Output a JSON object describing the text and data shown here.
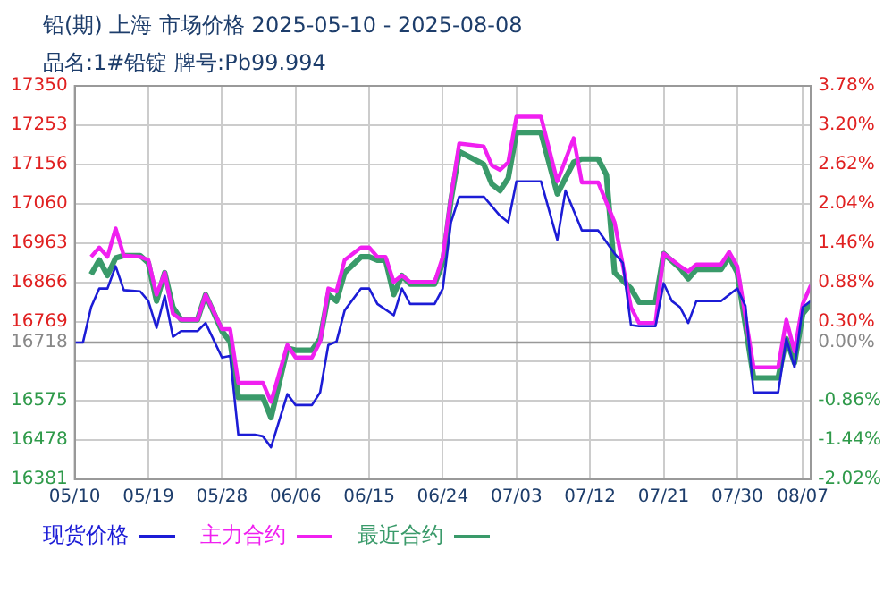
{
  "chart_data": {
    "type": "line",
    "title": "铅(期) 上海 市场价格 2025-05-10 - 2025-08-08",
    "subtitle": "品名:1#铅锭 牌号:Pb99.994",
    "xlim": [
      "2025-05-10",
      "2025-08-08"
    ],
    "xticks": [
      {
        "value": "2025-05-10",
        "label": "05/10"
      },
      {
        "value": "2025-05-19",
        "label": "05/19"
      },
      {
        "value": "2025-05-28",
        "label": "05/28"
      },
      {
        "value": "2025-06-06",
        "label": "06/06"
      },
      {
        "value": "2025-06-15",
        "label": "06/15"
      },
      {
        "value": "2025-06-24",
        "label": "06/24"
      },
      {
        "value": "2025-07-03",
        "label": "07/03"
      },
      {
        "value": "2025-07-12",
        "label": "07/12"
      },
      {
        "value": "2025-07-21",
        "label": "07/21"
      },
      {
        "value": "2025-07-30",
        "label": "07/30"
      },
      {
        "value": "2025-08-07",
        "label": "08/07"
      }
    ],
    "ylim": [
      16381,
      17350
    ],
    "yticks": [
      17350,
      17253,
      17156,
      17060,
      16963,
      16866,
      16769,
      16718,
      {
        "value": 16672,
        "label": null
      },
      16575,
      16478,
      16381
    ],
    "y2lim": [
      -2.02,
      3.78
    ],
    "y2ticks": [
      {
        "value": 3.78,
        "label": "3.78%"
      },
      {
        "value": 3.2,
        "label": "3.20%"
      },
      {
        "value": 2.62,
        "label": "2.62%"
      },
      {
        "value": 2.04,
        "label": "2.04%"
      },
      {
        "value": 1.46,
        "label": "1.46%"
      },
      {
        "value": 0.88,
        "label": "0.88%"
      },
      {
        "value": 0.3,
        "label": "0.30%"
      },
      {
        "value": 0,
        "label": "0.00%"
      },
      {
        "value": -0.86,
        "label": "-0.86%"
      },
      {
        "value": -1.44,
        "label": "-1.44%"
      },
      {
        "value": -2.02,
        "label": "-2.02%"
      }
    ],
    "ref_lines": [
      {
        "axis": "y",
        "value": 16718,
        "color": "#999999"
      }
    ],
    "grid": true,
    "legend": "bottom",
    "marker": "none",
    "line_style": "solid",
    "series": [
      {
        "name": "现货价格",
        "color": "#1c1cd6",
        "x": [
          "2025-05-10",
          "2025-05-11",
          "2025-05-12",
          "2025-05-13",
          "2025-05-14",
          "2025-05-15",
          "2025-05-16",
          "2025-05-18",
          "2025-05-19",
          "2025-05-20",
          "2025-05-21",
          "2025-05-22",
          "2025-05-23",
          "2025-05-25",
          "2025-05-26",
          "2025-05-28",
          "2025-05-29",
          "2025-05-30",
          "2025-06-01",
          "2025-06-02",
          "2025-06-03",
          "2025-06-05",
          "2025-06-06",
          "2025-06-08",
          "2025-06-09",
          "2025-06-10",
          "2025-06-11",
          "2025-06-12",
          "2025-06-14",
          "2025-06-15",
          "2025-06-16",
          "2025-06-18",
          "2025-06-19",
          "2025-06-20",
          "2025-06-23",
          "2025-06-24",
          "2025-06-25",
          "2025-06-26",
          "2025-06-29",
          "2025-07-01",
          "2025-07-02",
          "2025-07-03",
          "2025-07-06",
          "2025-07-08",
          "2025-07-09",
          "2025-07-11",
          "2025-07-13",
          "2025-07-15",
          "2025-07-16",
          "2025-07-17",
          "2025-07-18",
          "2025-07-20",
          "2025-07-21",
          "2025-07-22",
          "2025-07-23",
          "2025-07-24",
          "2025-07-25",
          "2025-07-28",
          "2025-07-30",
          "2025-07-31",
          "2025-08-01",
          "2025-08-04",
          "2025-08-05",
          "2025-08-06",
          "2025-08-07",
          "2025-08-08"
        ],
        "values": [
          16718,
          16718,
          16805,
          16851,
          16851,
          16906,
          16847,
          16844,
          16820,
          16754,
          16833,
          16732,
          16746,
          16746,
          16766,
          16681,
          16685,
          16491,
          16491,
          16487,
          16460,
          16591,
          16564,
          16564,
          16595,
          16712,
          16720,
          16797,
          16851,
          16851,
          16813,
          16785,
          16851,
          16813,
          16813,
          16851,
          17014,
          17077,
          17077,
          17030,
          17014,
          17115,
          17115,
          16971,
          17092,
          16994,
          16994,
          16937,
          16914,
          16761,
          16758,
          16758,
          16864,
          16820,
          16805,
          16766,
          16820,
          16820,
          16851,
          16808,
          16595,
          16595,
          16727,
          16657,
          16805,
          16820
        ]
      },
      {
        "name": "主力合约",
        "color": "#f020f0",
        "x": [
          "2025-05-12",
          "2025-05-13",
          "2025-05-14",
          "2025-05-15",
          "2025-05-16",
          "2025-05-18",
          "2025-05-19",
          "2025-05-20",
          "2025-05-21",
          "2025-05-22",
          "2025-05-23",
          "2025-05-25",
          "2025-05-26",
          "2025-05-28",
          "2025-05-29",
          "2025-05-30",
          "2025-06-02",
          "2025-06-03",
          "2025-06-05",
          "2025-06-06",
          "2025-06-08",
          "2025-06-09",
          "2025-06-10",
          "2025-06-11",
          "2025-06-12",
          "2025-06-14",
          "2025-06-15",
          "2025-06-16",
          "2025-06-17",
          "2025-06-18",
          "2025-06-19",
          "2025-06-20",
          "2025-06-23",
          "2025-06-24",
          "2025-06-25",
          "2025-06-26",
          "2025-06-29",
          "2025-06-30",
          "2025-07-01",
          "2025-07-02",
          "2025-07-03",
          "2025-07-06",
          "2025-07-08",
          "2025-07-10",
          "2025-07-11",
          "2025-07-13",
          "2025-07-15",
          "2025-07-17",
          "2025-07-18",
          "2025-07-20",
          "2025-07-21",
          "2025-07-23",
          "2025-07-24",
          "2025-07-25",
          "2025-07-28",
          "2025-07-29",
          "2025-07-30",
          "2025-08-01",
          "2025-08-04",
          "2025-08-05",
          "2025-08-06",
          "2025-08-07",
          "2025-08-08"
        ],
        "values": [
          16929,
          16952,
          16929,
          16999,
          16932,
          16929,
          16921,
          16836,
          16890,
          16789,
          16774,
          16774,
          16836,
          16751,
          16751,
          16619,
          16619,
          16572,
          16712,
          16681,
          16681,
          16720,
          16851,
          16844,
          16921,
          16952,
          16952,
          16929,
          16929,
          16867,
          16883,
          16867,
          16867,
          16929,
          17077,
          17208,
          17201,
          17154,
          17143,
          17162,
          17274,
          17274,
          17115,
          17221,
          17112,
          17112,
          17014,
          16805,
          16766,
          16766,
          16937,
          16906,
          16893,
          16910,
          16910,
          16941,
          16906,
          16657,
          16657,
          16774,
          16696,
          16813,
          16859
        ]
      },
      {
        "name": "最近合约",
        "color": "#3a9a6a",
        "x": [
          "2025-05-12",
          "2025-05-13",
          "2025-05-14",
          "2025-05-15",
          "2025-05-16",
          "2025-05-18",
          "2025-05-19",
          "2025-05-20",
          "2025-05-21",
          "2025-05-22",
          "2025-05-23",
          "2025-05-25",
          "2025-05-26",
          "2025-05-28",
          "2025-05-29",
          "2025-05-30",
          "2025-06-02",
          "2025-06-03",
          "2025-06-05",
          "2025-06-06",
          "2025-06-08",
          "2025-06-09",
          "2025-06-10",
          "2025-06-11",
          "2025-06-12",
          "2025-06-14",
          "2025-06-15",
          "2025-06-16",
          "2025-06-17",
          "2025-06-18",
          "2025-06-19",
          "2025-06-20",
          "2025-06-23",
          "2025-06-24",
          "2025-06-25",
          "2025-06-26",
          "2025-06-29",
          "2025-06-30",
          "2025-07-01",
          "2025-07-02",
          "2025-07-03",
          "2025-07-06",
          "2025-07-08",
          "2025-07-10",
          "2025-07-11",
          "2025-07-13",
          "2025-07-14",
          "2025-07-15",
          "2025-07-17",
          "2025-07-18",
          "2025-07-20",
          "2025-07-21",
          "2025-07-23",
          "2025-07-24",
          "2025-07-25",
          "2025-07-28",
          "2025-07-29",
          "2025-07-30",
          "2025-08-01",
          "2025-08-04",
          "2025-08-05",
          "2025-08-06",
          "2025-08-07",
          "2025-08-08"
        ],
        "values": [
          16886,
          16921,
          16883,
          16926,
          16932,
          16932,
          16914,
          16820,
          16890,
          16805,
          16774,
          16774,
          16836,
          16746,
          16720,
          16583,
          16583,
          16533,
          16704,
          16699,
          16699,
          16727,
          16836,
          16820,
          16890,
          16929,
          16929,
          16921,
          16921,
          16836,
          16883,
          16862,
          16862,
          16914,
          17069,
          17188,
          17157,
          17108,
          17092,
          17123,
          17235,
          17235,
          17084,
          17162,
          17170,
          17170,
          17131,
          16890,
          16851,
          16817,
          16817,
          16937,
          16901,
          16875,
          16898,
          16898,
          16929,
          16890,
          16631,
          16631,
          16727,
          16668,
          16789,
          16813
        ]
      }
    ]
  }
}
